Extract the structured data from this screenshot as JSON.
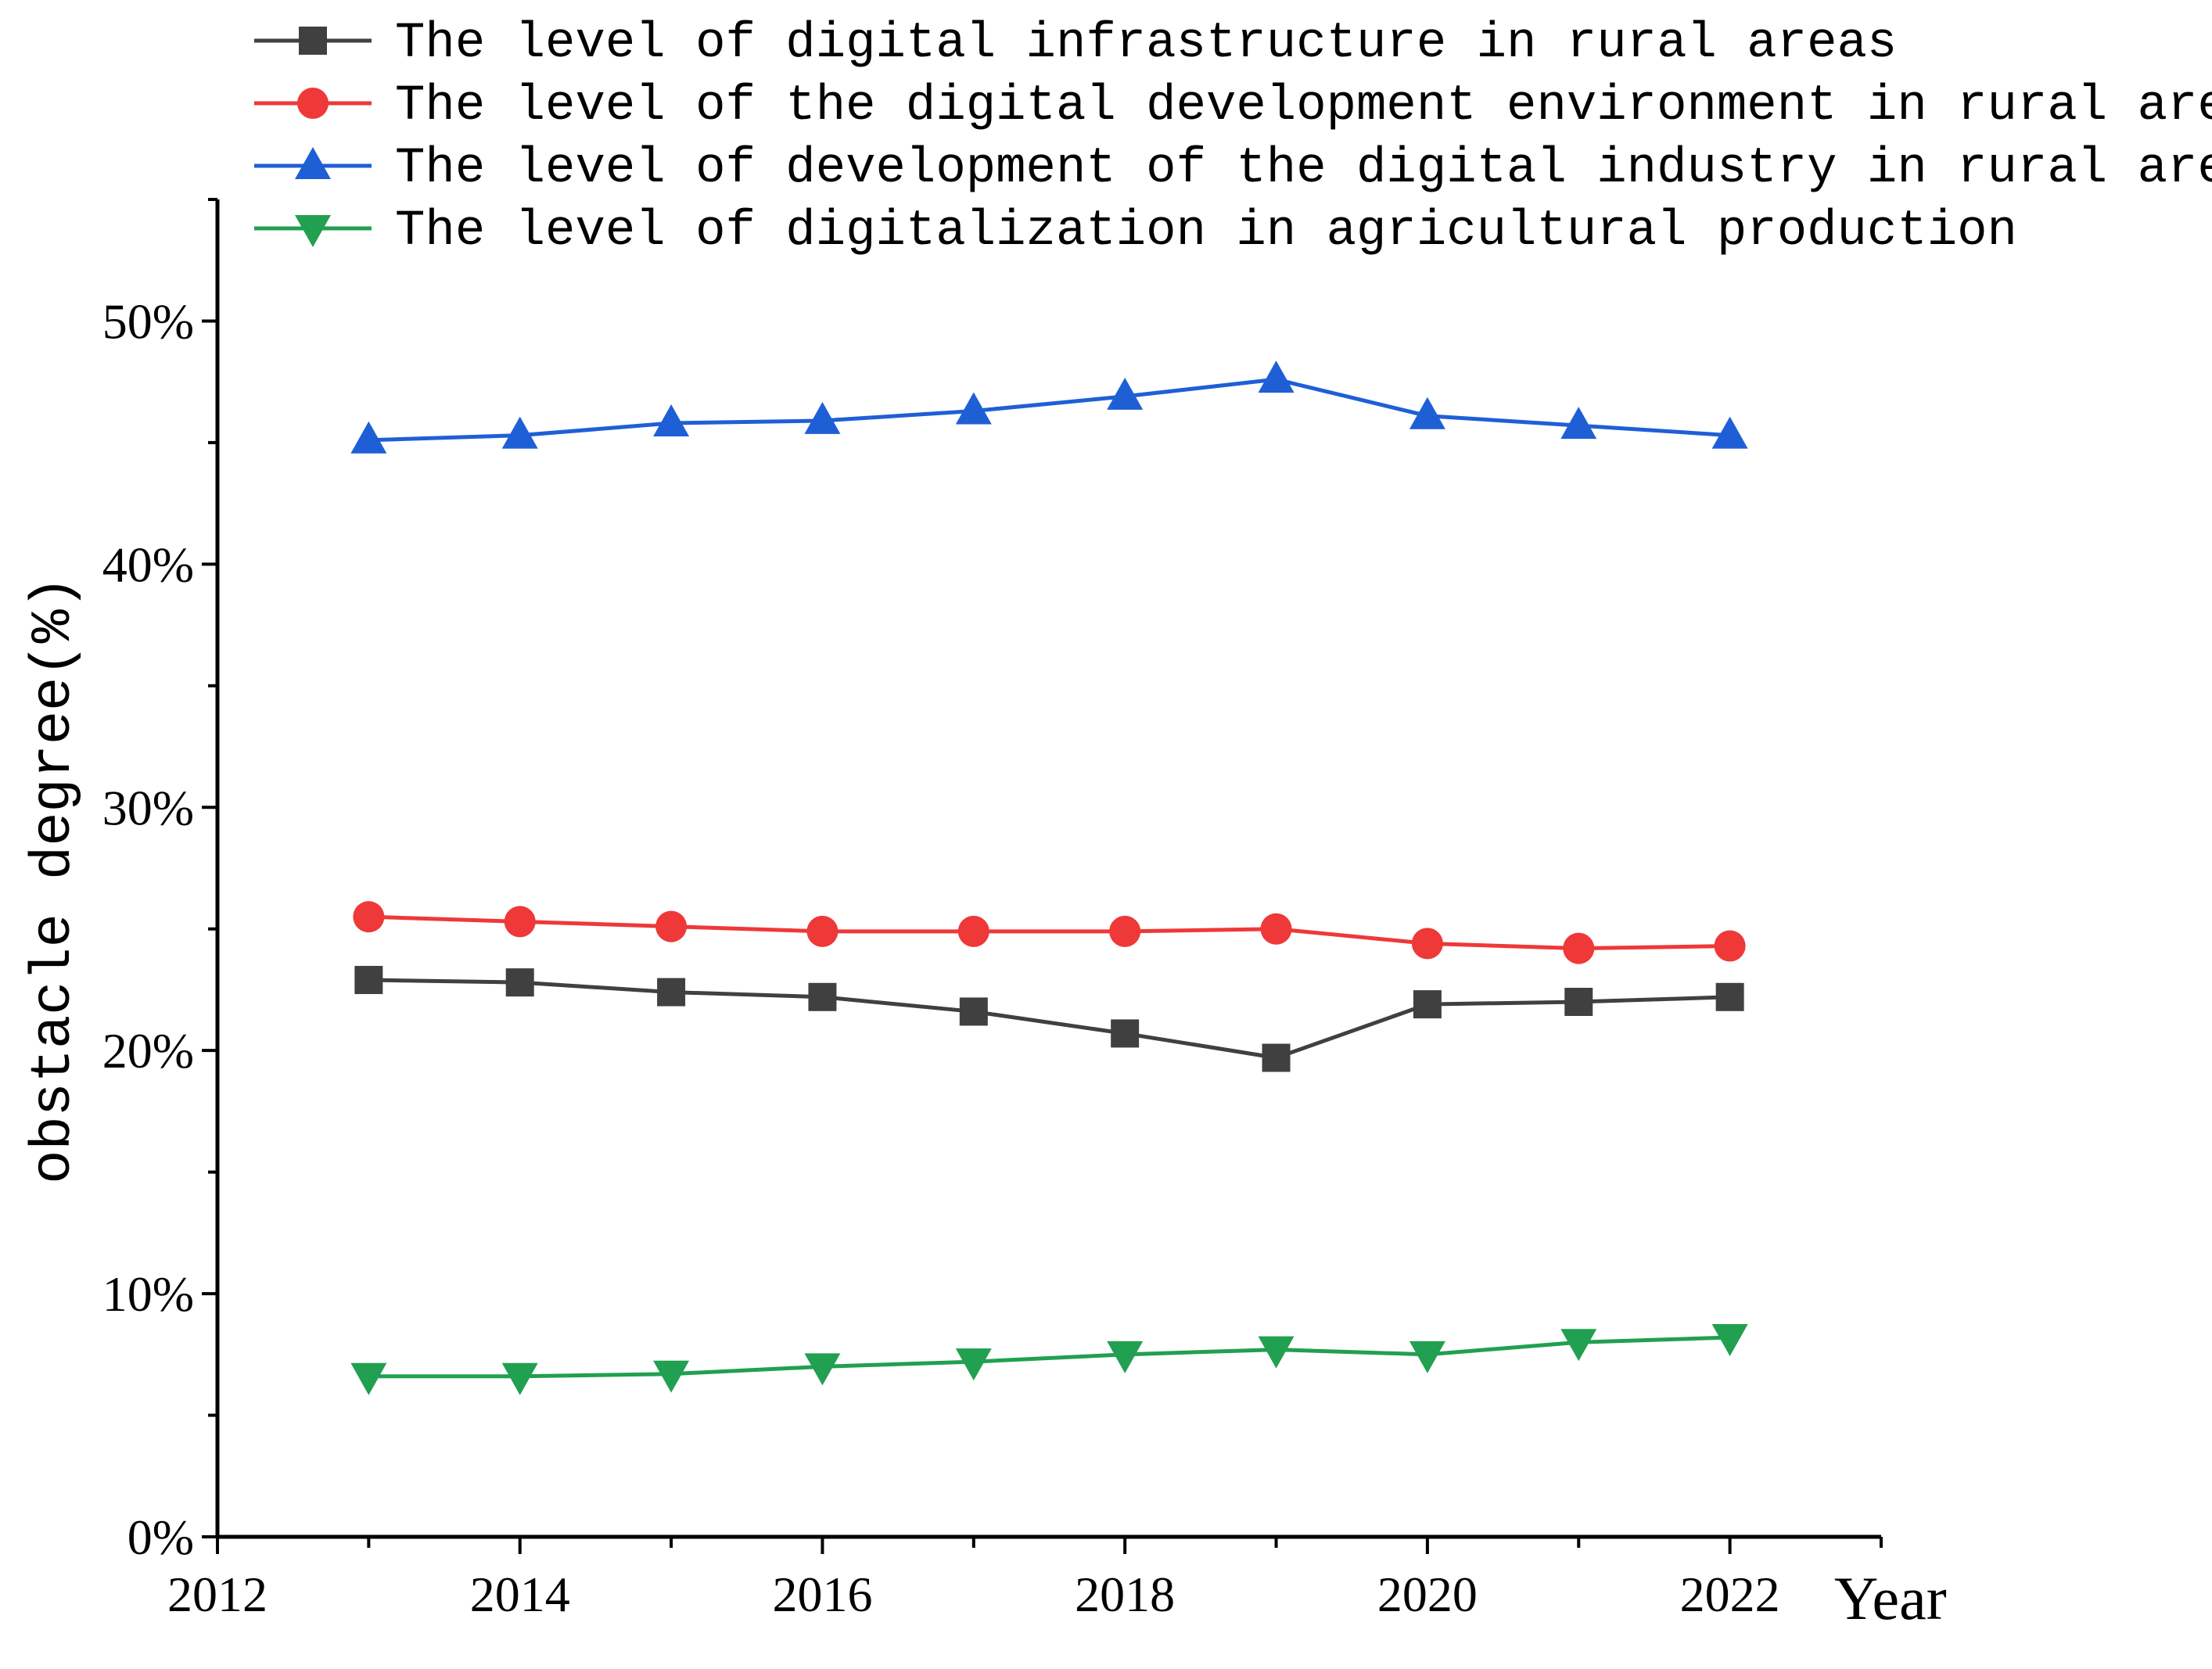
{
  "chart_data": {
    "type": "line",
    "title": "",
    "xlabel": "Year",
    "ylabel": "obstacle degree(%)",
    "xlim": [
      2012,
      2023
    ],
    "ylim": [
      0,
      55
    ],
    "x_ticks": [
      2012,
      2014,
      2016,
      2018,
      2020,
      2022
    ],
    "y_ticks": [
      0,
      10,
      20,
      30,
      40,
      50
    ],
    "y_tick_labels": [
      "0%",
      "10%",
      "20%",
      "30%",
      "40%",
      "50%"
    ],
    "x": [
      2013,
      2014,
      2015,
      2016,
      2017,
      2018,
      2019,
      2020,
      2021,
      2022
    ],
    "legend_position": "top",
    "series": [
      {
        "name": "The level of digital infrastructure in rural areas",
        "color": "#404040",
        "marker": "square",
        "values": [
          22.9,
          22.8,
          22.4,
          22.2,
          21.6,
          20.7,
          19.7,
          21.9,
          22.0,
          22.2
        ]
      },
      {
        "name": "The level of the digital development environment in rural areas",
        "color": "#ef3838",
        "marker": "circle",
        "values": [
          25.5,
          25.3,
          25.1,
          24.9,
          24.9,
          24.9,
          25.0,
          24.4,
          24.2,
          24.3
        ]
      },
      {
        "name": "The level of development of the digital industry in rural areas",
        "color": "#1f5fd6",
        "marker": "triangle-up",
        "values": [
          45.1,
          45.3,
          45.8,
          45.9,
          46.3,
          46.9,
          47.6,
          46.1,
          45.7,
          45.3
        ]
      },
      {
        "name": "The level of digitalization in agricultural production",
        "color": "#20a050",
        "marker": "triangle-down",
        "values": [
          6.6,
          6.6,
          6.7,
          7.0,
          7.2,
          7.5,
          7.7,
          7.5,
          8.0,
          8.2
        ]
      }
    ]
  }
}
